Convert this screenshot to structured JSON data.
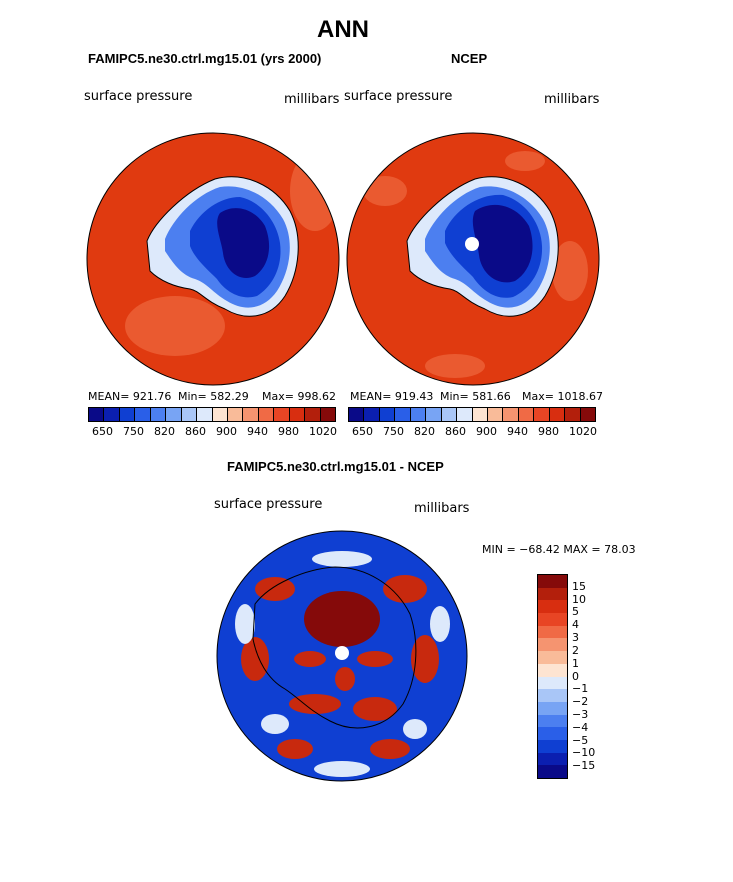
{
  "header": {
    "title": "ANN",
    "left_panel_title": "FAMIPC5.ne30.ctrl.mg15.01 (yrs 2000)",
    "right_panel_title": "NCEP",
    "diff_panel_title": "FAMIPC5.ne30.ctrl.mg15.01 - NCEP"
  },
  "panels": {
    "left": {
      "variable": "surface pressure",
      "units": "millibars",
      "mean": "MEAN= 921.76",
      "min": "Min= 582.29",
      "max": "Max= 998.62"
    },
    "right": {
      "variable": "surface pressure",
      "units": "millibars",
      "mean": "MEAN= 919.43",
      "min": "Min= 581.66",
      "max": "Max= 1018.67"
    },
    "diff": {
      "variable": "surface pressure",
      "units": "millibars",
      "minmax": "MIN = −68.42  MAX =   78.03"
    }
  },
  "colorbar_top": {
    "ticks": [
      "650",
      "750",
      "820",
      "860",
      "900",
      "940",
      "980",
      "1020"
    ],
    "colors": [
      "#0a0a88",
      "#0b1fb0",
      "#0f3fd2",
      "#2a5fe8",
      "#4c7ff0",
      "#78a4f4",
      "#a9c6f7",
      "#dde9fb",
      "#fde4d2",
      "#f9bb99",
      "#f59470",
      "#f06a45",
      "#e84524",
      "#d82e10",
      "#b31f0c",
      "#850a0a"
    ]
  },
  "colorbar_diff": {
    "labels": [
      "15",
      "10",
      "5",
      "4",
      "3",
      "2",
      "1",
      "0",
      "−1",
      "−2",
      "−3",
      "−4",
      "−5",
      "−10",
      "−15"
    ],
    "colors": [
      "#850a0a",
      "#b31f0c",
      "#d82e10",
      "#e84524",
      "#f06a45",
      "#f59470",
      "#f9bb99",
      "#fde4d2",
      "#dde9fb",
      "#a9c6f7",
      "#78a4f4",
      "#4c7ff0",
      "#2a5fe8",
      "#0f3fd2",
      "#0b1fb0",
      "#0a0a88"
    ]
  },
  "map_colors": {
    "ocean": "#e03a10",
    "ocean_light": "#ea5a30",
    "ice_deep": "#0a0a88",
    "ice_mid": "#0f3fd2",
    "ice_light": "#4c7ff0",
    "ice_pale": "#dde9fb",
    "diff_red": "#c8290e",
    "diff_dark_red": "#850a0a",
    "diff_blue": "#0f3fd2",
    "diff_pale": "#dde9fb"
  }
}
